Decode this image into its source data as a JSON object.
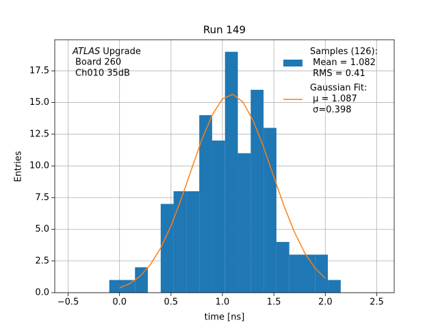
{
  "chart_data": {
    "type": "histogram",
    "title": "Run 149",
    "xlabel": "time [ns]",
    "ylabel": "Entries",
    "annotation": {
      "experiment": "ATLAS",
      "lines": [
        "Upgrade",
        "Board 260",
        "Ch010 35dB"
      ]
    },
    "bins": [
      -0.1,
      0.025,
      0.15,
      0.275,
      0.4,
      0.525,
      0.65,
      0.775,
      0.9,
      1.025,
      1.15,
      1.275,
      1.4,
      1.525,
      1.65,
      1.775,
      1.9,
      2.025,
      2.15
    ],
    "series": [
      {
        "name": "Samples (126):\n Mean = 1.082\n RMS = 0.41",
        "color": "#1f77b4",
        "values": [
          1,
          1,
          2,
          0,
          7,
          8,
          8,
          14,
          12,
          19,
          11,
          16,
          13,
          4,
          3,
          3,
          3,
          1
        ]
      },
      {
        "name": "Gaussian Fit:\n μ = 1.087\n σ=0.398",
        "color": "#ff7f0e",
        "type": "line",
        "x": [
          0,
          0.1,
          0.2,
          0.3,
          0.4,
          0.5,
          0.6,
          0.7,
          0.8,
          0.9,
          1.0,
          1.1,
          1.2,
          1.3,
          1.4,
          1.5,
          1.6,
          1.7,
          1.8,
          1.9,
          2.0
        ],
        "values": [
          0.38,
          0.72,
          1.3,
          2.22,
          3.53,
          5.27,
          7.4,
          9.75,
          12.07,
          14.01,
          15.28,
          15.65,
          15.03,
          13.56,
          11.49,
          9.13,
          6.82,
          4.78,
          3.14,
          1.94,
          1.13
        ]
      }
    ],
    "xlim": [
      -0.63,
      2.67
    ],
    "ylim": [
      0,
      19.95
    ],
    "xticks": [
      {
        "value": -0.5,
        "label": "−0.5"
      },
      {
        "value": 0,
        "label": "0.0"
      },
      0.5,
      {
        "value": 1,
        "label": "1.0"
      },
      1.5,
      {
        "value": 2,
        "label": "2.0"
      },
      2.5
    ],
    "yticks": [
      {
        "value": 0,
        "label": "0.0"
      },
      2.5,
      {
        "value": 5,
        "label": "5.0"
      },
      7.5,
      {
        "value": 10,
        "label": "10.0"
      },
      12.5,
      {
        "value": 15,
        "label": "15.0"
      },
      17.5
    ],
    "grid": true,
    "legend": "upper right"
  }
}
